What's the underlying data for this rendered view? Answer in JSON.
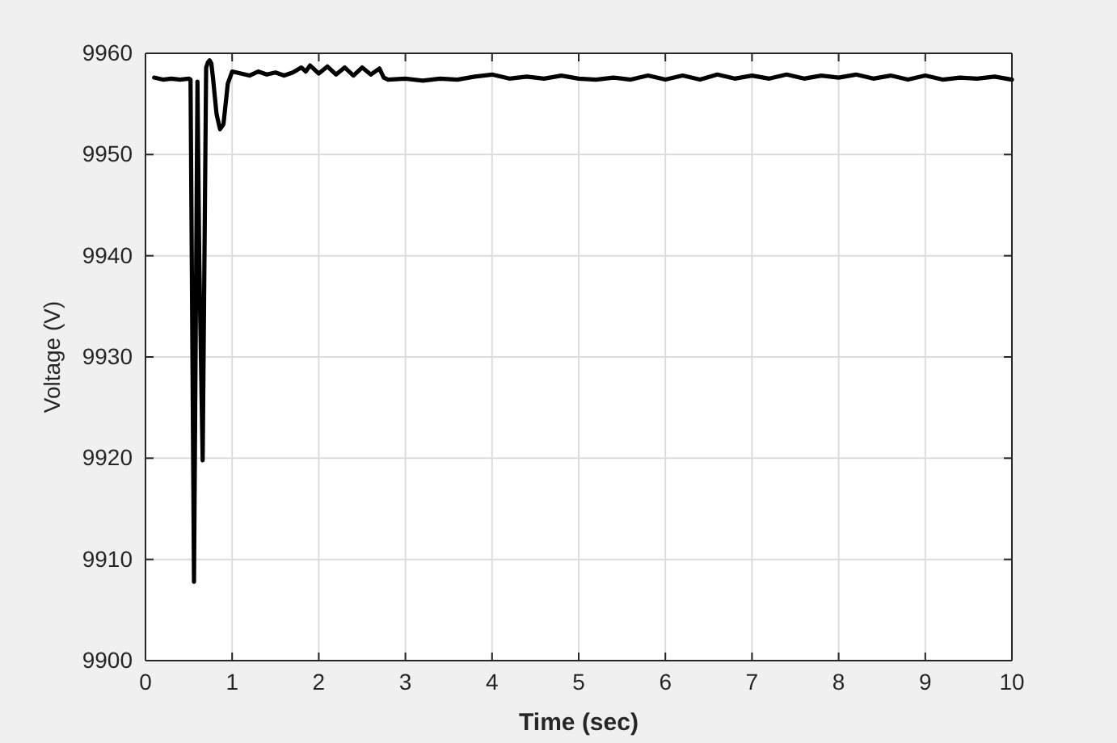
{
  "chart_data": {
    "type": "line",
    "xlabel": "Time (sec)",
    "ylabel": "Voltage (V)",
    "xlim": [
      0,
      10
    ],
    "ylim": [
      9900,
      9960
    ],
    "xticks": [
      0,
      1,
      2,
      3,
      4,
      5,
      6,
      7,
      8,
      9,
      10
    ],
    "yticks": [
      9900,
      9910,
      9920,
      9930,
      9940,
      9950,
      9960
    ],
    "grid": true,
    "line_style": "solid",
    "marker": "none",
    "series": [
      {
        "color": "#000000",
        "x": [
          0.1,
          0.2,
          0.3,
          0.4,
          0.5,
          0.52,
          0.56,
          0.6,
          0.62,
          0.66,
          0.7,
          0.72,
          0.74,
          0.76,
          0.78,
          0.82,
          0.86,
          0.9,
          0.95,
          1.0,
          1.1,
          1.2,
          1.3,
          1.4,
          1.5,
          1.6,
          1.7,
          1.8,
          1.85,
          1.9,
          2.0,
          2.1,
          2.2,
          2.3,
          2.4,
          2.5,
          2.6,
          2.7,
          2.75,
          2.8,
          3.0,
          3.2,
          3.4,
          3.6,
          3.8,
          4.0,
          4.2,
          4.4,
          4.6,
          4.8,
          5.0,
          5.2,
          5.4,
          5.6,
          5.8,
          6.0,
          6.2,
          6.4,
          6.6,
          6.8,
          7.0,
          7.2,
          7.4,
          7.6,
          7.8,
          8.0,
          8.2,
          8.4,
          8.6,
          8.8,
          9.0,
          9.2,
          9.4,
          9.6,
          9.8,
          10.0
        ],
        "values": [
          9957.6,
          9957.4,
          9957.5,
          9957.4,
          9957.5,
          9957.4,
          9907.8,
          9957.2,
          9940,
          9919.8,
          9958.6,
          9959.1,
          9959.3,
          9959,
          9957.5,
          9954,
          9952.5,
          9953,
          9957,
          9958.2,
          9958,
          9957.8,
          9958.2,
          9957.9,
          9958.1,
          9957.8,
          9958.1,
          9958.6,
          9958.2,
          9958.8,
          9958,
          9958.7,
          9957.9,
          9958.6,
          9957.8,
          9958.6,
          9957.9,
          9958.5,
          9957.6,
          9957.4,
          9957.5,
          9957.3,
          9957.5,
          9957.4,
          9957.7,
          9957.9,
          9957.5,
          9957.7,
          9957.5,
          9957.8,
          9957.5,
          9957.4,
          9957.6,
          9957.4,
          9957.8,
          9957.4,
          9957.8,
          9957.4,
          9957.9,
          9957.5,
          9957.8,
          9957.5,
          9957.9,
          9957.5,
          9957.8,
          9957.6,
          9957.9,
          9957.5,
          9957.8,
          9957.4,
          9957.8,
          9957.4,
          9957.6,
          9957.5,
          9957.7,
          9957.4
        ]
      }
    ]
  }
}
